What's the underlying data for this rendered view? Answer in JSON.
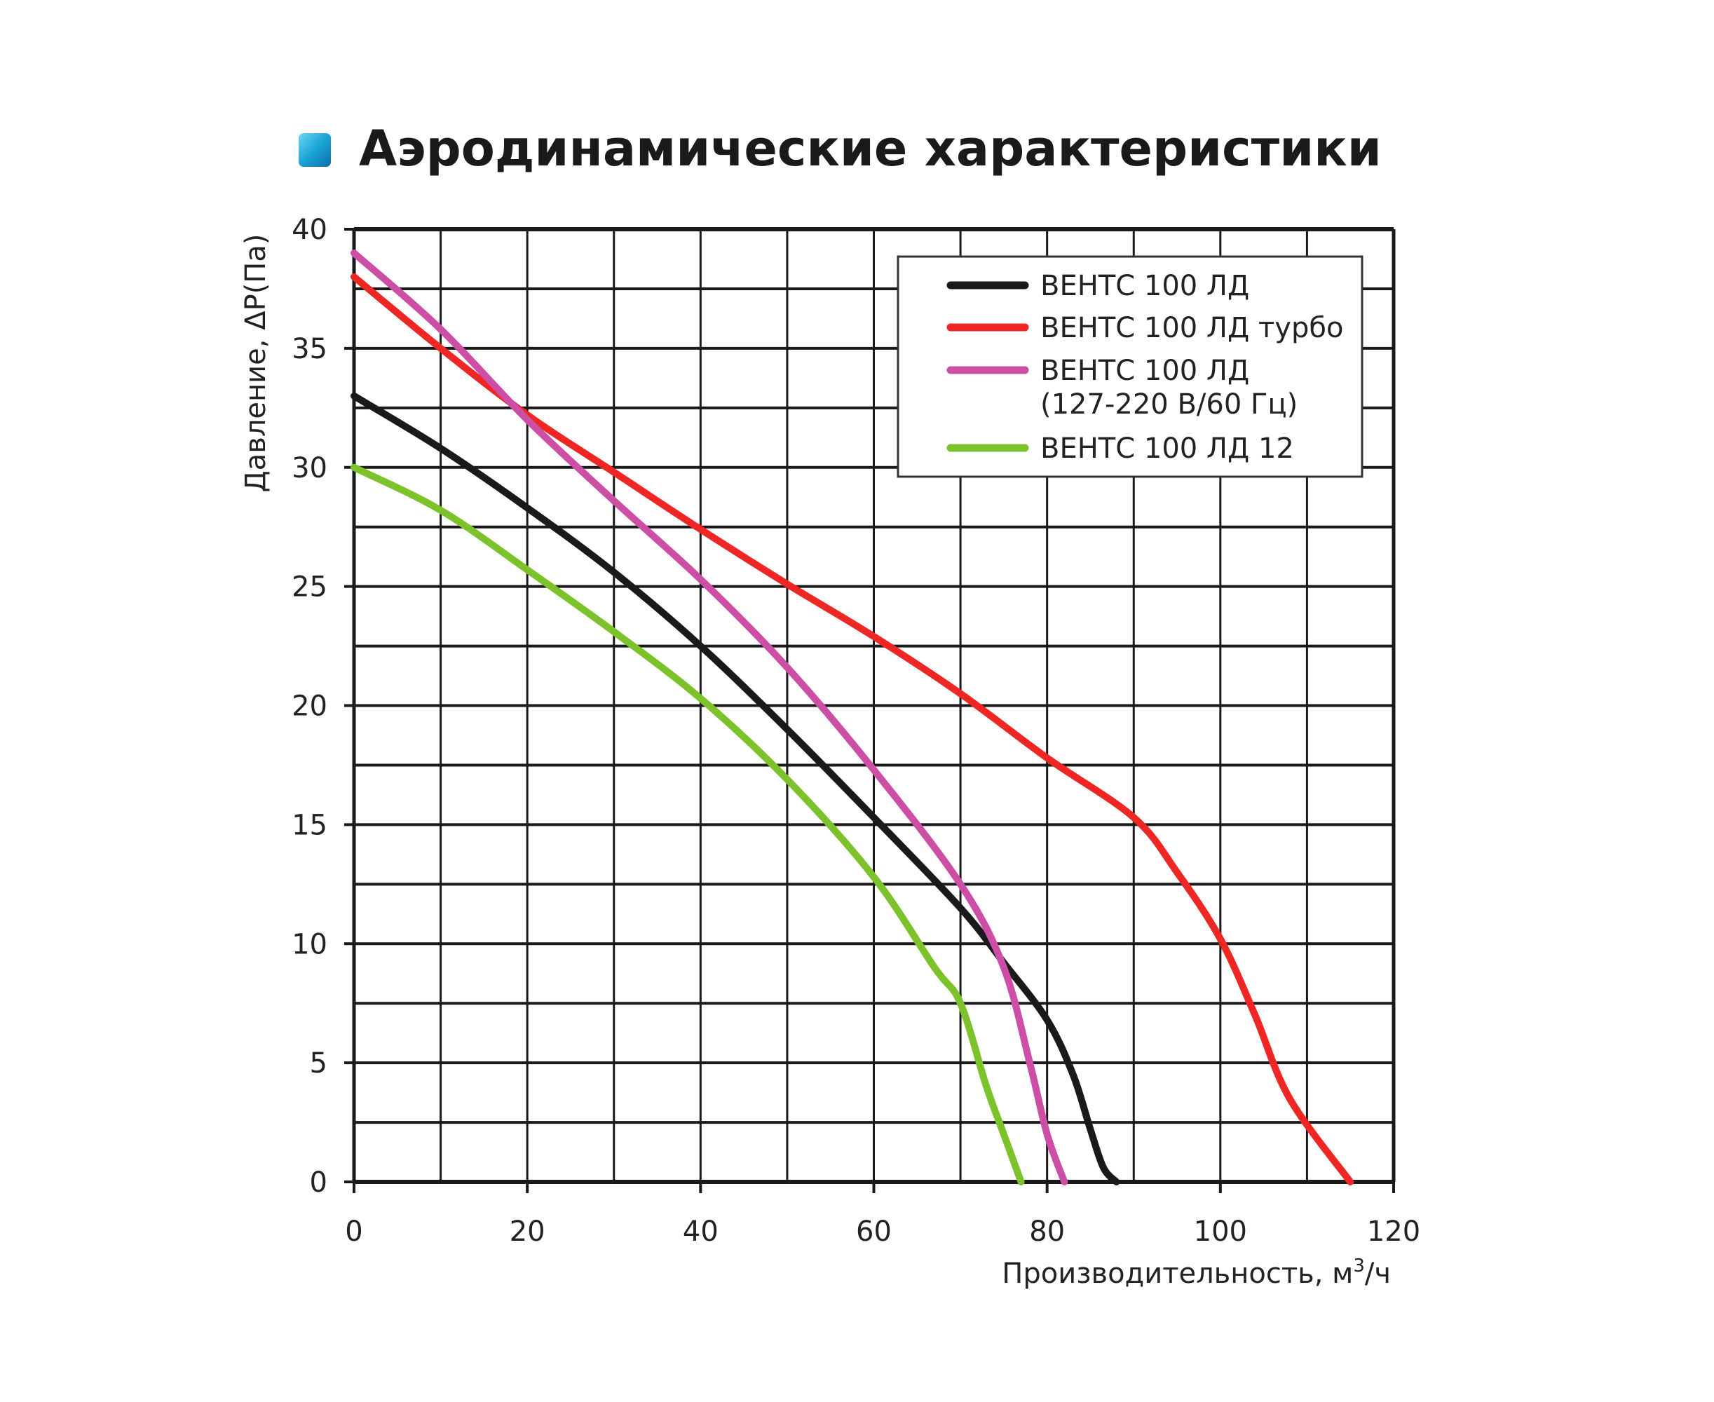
{
  "chart_data": {
    "type": "line",
    "title": "Аэродинамические характеристики",
    "xlabel": "Производительность, м³/ч",
    "xlabel_main": "Производительность, м",
    "xlabel_sup": "3",
    "xlabel_tail": "/ч",
    "ylabel": "Давление, ΔP(Па)",
    "xlim": [
      0,
      120
    ],
    "ylim": [
      0,
      40
    ],
    "xticks": [
      0,
      20,
      40,
      60,
      80,
      100,
      120
    ],
    "yticks": [
      0,
      5,
      10,
      15,
      20,
      25,
      30,
      35,
      40
    ],
    "grid": true,
    "legend_position": "top-right",
    "series": [
      {
        "name": "ВЕНТС 100 ЛД",
        "label_lines": [
          "ВЕНТС 100 ЛД"
        ],
        "color": "#1a1a1a",
        "points": [
          [
            0,
            33
          ],
          [
            10,
            30.8
          ],
          [
            20,
            28.3
          ],
          [
            30,
            25.6
          ],
          [
            40,
            22.5
          ],
          [
            50,
            19
          ],
          [
            60,
            15.3
          ],
          [
            70,
            11.5
          ],
          [
            75,
            9.2
          ],
          [
            80,
            6.8
          ],
          [
            83,
            4.5
          ],
          [
            85,
            2.2
          ],
          [
            86.5,
            0.6
          ],
          [
            88,
            0
          ]
        ]
      },
      {
        "name": "ВЕНТС 100 ЛД турбо",
        "label_lines": [
          "ВЕНТС 100 ЛД турбо"
        ],
        "color": "#ee2624",
        "points": [
          [
            0,
            38
          ],
          [
            10,
            35
          ],
          [
            20,
            32.2
          ],
          [
            30,
            29.8
          ],
          [
            40,
            27.4
          ],
          [
            50,
            25.1
          ],
          [
            60,
            22.9
          ],
          [
            70,
            20.5
          ],
          [
            80,
            17.8
          ],
          [
            90,
            15.3
          ],
          [
            95,
            13
          ],
          [
            100,
            10.2
          ],
          [
            104,
            7
          ],
          [
            108,
            3.5
          ],
          [
            115,
            0
          ]
        ]
      },
      {
        "name": "ВЕНТС 100 ЛД (127-220 В/60 Гц)",
        "label_lines": [
          "ВЕНТС 100 ЛД",
          "(127-220 В/60 Гц)"
        ],
        "color": "#cc4fa5",
        "points": [
          [
            0,
            39
          ],
          [
            10,
            35.8
          ],
          [
            20,
            32
          ],
          [
            30,
            28.6
          ],
          [
            40,
            25.3
          ],
          [
            50,
            21.6
          ],
          [
            60,
            17.3
          ],
          [
            70,
            12.5
          ],
          [
            75,
            9
          ],
          [
            78,
            5
          ],
          [
            80,
            2
          ],
          [
            82,
            0
          ]
        ]
      },
      {
        "name": "ВЕНТС 100 ЛД 12",
        "label_lines": [
          "ВЕНТС 100 ЛД 12"
        ],
        "color": "#7cc22a",
        "points": [
          [
            0,
            30
          ],
          [
            10,
            28.2
          ],
          [
            20,
            25.7
          ],
          [
            30,
            23.1
          ],
          [
            40,
            20.3
          ],
          [
            50,
            16.9
          ],
          [
            60,
            12.8
          ],
          [
            67,
            9
          ],
          [
            70,
            7.5
          ],
          [
            73,
            4
          ],
          [
            75,
            2
          ],
          [
            77,
            0
          ]
        ]
      }
    ]
  },
  "colors": {
    "accent_icon": "#1aa3d6"
  }
}
